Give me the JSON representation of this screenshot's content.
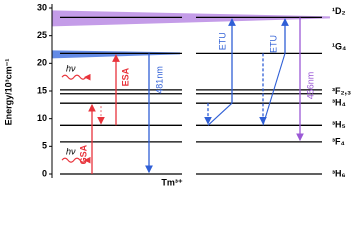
{
  "axis": {
    "label": "Energy/10³cm⁻¹",
    "lim": [
      0,
      30
    ],
    "ticks": [
      0,
      5,
      10,
      15,
      20,
      25,
      30
    ]
  },
  "levels": [
    {
      "label": "¹D₂",
      "energies": [
        28.3
      ]
    },
    {
      "label": "¹G₄",
      "energies": [
        21.8
      ]
    },
    {
      "label": "³F₂,₃",
      "energies": [
        14.5,
        15.2
      ]
    },
    {
      "label": "³H₄",
      "energies": [
        12.8
      ]
    },
    {
      "label": "³H₅",
      "energies": [
        8.8
      ]
    },
    {
      "label": "³F₄",
      "energies": [
        5.8
      ]
    },
    {
      "label": "³H₆",
      "energies": [
        0
      ]
    }
  ],
  "ion": "Tm³⁺",
  "annotations": {
    "gsa": "GSA",
    "esa": "ESA",
    "emission_blue": "481nm",
    "emission_violet": "456nm",
    "etu": [
      "ETU",
      "ETU"
    ],
    "photon": [
      "hν",
      "hν"
    ]
  }
}
